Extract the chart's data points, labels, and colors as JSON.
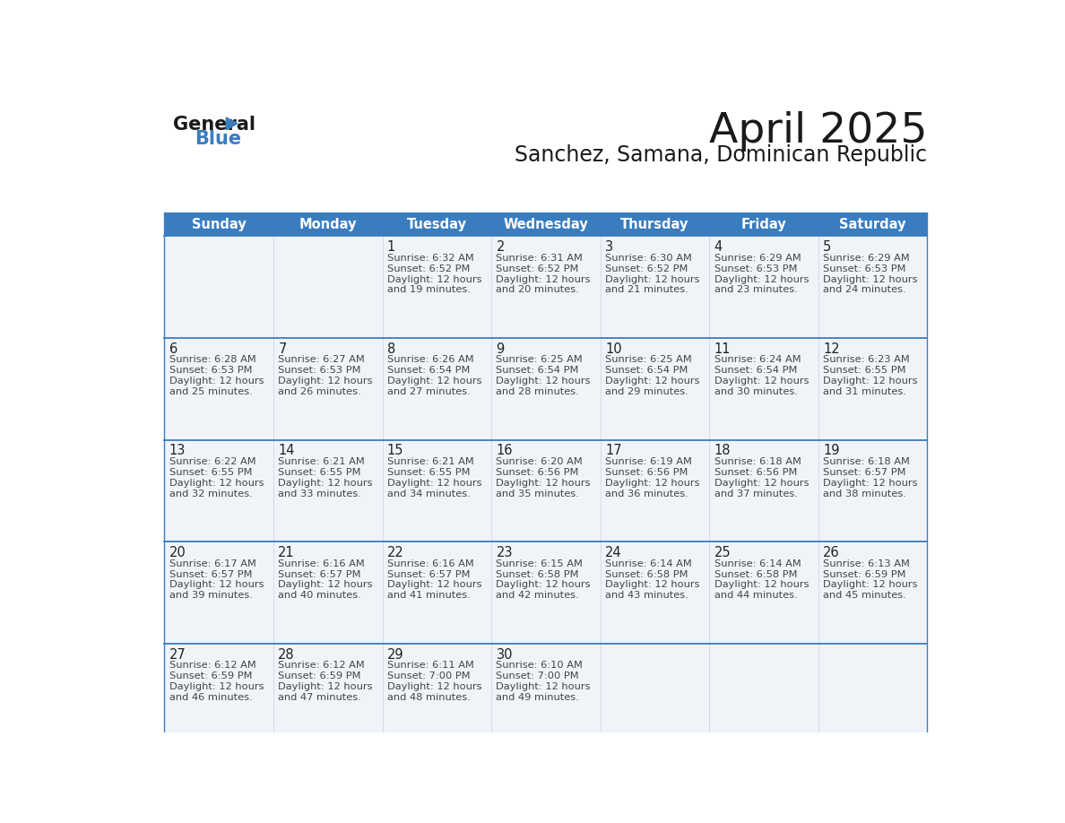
{
  "title": "April 2025",
  "subtitle": "Sanchez, Samana, Dominican Republic",
  "header_bg": "#3a7dbf",
  "header_text": "#ffffff",
  "cell_bg": "#f0f4f9",
  "border_color": "#3a7dbf",
  "text_color": "#444444",
  "days_of_week": [
    "Sunday",
    "Monday",
    "Tuesday",
    "Wednesday",
    "Thursday",
    "Friday",
    "Saturday"
  ],
  "weeks": [
    [
      {
        "day": null,
        "sunrise": null,
        "sunset": null,
        "daylight_min": null
      },
      {
        "day": null,
        "sunrise": null,
        "sunset": null,
        "daylight_min": null
      },
      {
        "day": 1,
        "sunrise": "6:32 AM",
        "sunset": "6:52 PM",
        "daylight_min": 19
      },
      {
        "day": 2,
        "sunrise": "6:31 AM",
        "sunset": "6:52 PM",
        "daylight_min": 20
      },
      {
        "day": 3,
        "sunrise": "6:30 AM",
        "sunset": "6:52 PM",
        "daylight_min": 21
      },
      {
        "day": 4,
        "sunrise": "6:29 AM",
        "sunset": "6:53 PM",
        "daylight_min": 23
      },
      {
        "day": 5,
        "sunrise": "6:29 AM",
        "sunset": "6:53 PM",
        "daylight_min": 24
      }
    ],
    [
      {
        "day": 6,
        "sunrise": "6:28 AM",
        "sunset": "6:53 PM",
        "daylight_min": 25
      },
      {
        "day": 7,
        "sunrise": "6:27 AM",
        "sunset": "6:53 PM",
        "daylight_min": 26
      },
      {
        "day": 8,
        "sunrise": "6:26 AM",
        "sunset": "6:54 PM",
        "daylight_min": 27
      },
      {
        "day": 9,
        "sunrise": "6:25 AM",
        "sunset": "6:54 PM",
        "daylight_min": 28
      },
      {
        "day": 10,
        "sunrise": "6:25 AM",
        "sunset": "6:54 PM",
        "daylight_min": 29
      },
      {
        "day": 11,
        "sunrise": "6:24 AM",
        "sunset": "6:54 PM",
        "daylight_min": 30
      },
      {
        "day": 12,
        "sunrise": "6:23 AM",
        "sunset": "6:55 PM",
        "daylight_min": 31
      }
    ],
    [
      {
        "day": 13,
        "sunrise": "6:22 AM",
        "sunset": "6:55 PM",
        "daylight_min": 32
      },
      {
        "day": 14,
        "sunrise": "6:21 AM",
        "sunset": "6:55 PM",
        "daylight_min": 33
      },
      {
        "day": 15,
        "sunrise": "6:21 AM",
        "sunset": "6:55 PM",
        "daylight_min": 34
      },
      {
        "day": 16,
        "sunrise": "6:20 AM",
        "sunset": "6:56 PM",
        "daylight_min": 35
      },
      {
        "day": 17,
        "sunrise": "6:19 AM",
        "sunset": "6:56 PM",
        "daylight_min": 36
      },
      {
        "day": 18,
        "sunrise": "6:18 AM",
        "sunset": "6:56 PM",
        "daylight_min": 37
      },
      {
        "day": 19,
        "sunrise": "6:18 AM",
        "sunset": "6:57 PM",
        "daylight_min": 38
      }
    ],
    [
      {
        "day": 20,
        "sunrise": "6:17 AM",
        "sunset": "6:57 PM",
        "daylight_min": 39
      },
      {
        "day": 21,
        "sunrise": "6:16 AM",
        "sunset": "6:57 PM",
        "daylight_min": 40
      },
      {
        "day": 22,
        "sunrise": "6:16 AM",
        "sunset": "6:57 PM",
        "daylight_min": 41
      },
      {
        "day": 23,
        "sunrise": "6:15 AM",
        "sunset": "6:58 PM",
        "daylight_min": 42
      },
      {
        "day": 24,
        "sunrise": "6:14 AM",
        "sunset": "6:58 PM",
        "daylight_min": 43
      },
      {
        "day": 25,
        "sunrise": "6:14 AM",
        "sunset": "6:58 PM",
        "daylight_min": 44
      },
      {
        "day": 26,
        "sunrise": "6:13 AM",
        "sunset": "6:59 PM",
        "daylight_min": 45
      }
    ],
    [
      {
        "day": 27,
        "sunrise": "6:12 AM",
        "sunset": "6:59 PM",
        "daylight_min": 46
      },
      {
        "day": 28,
        "sunrise": "6:12 AM",
        "sunset": "6:59 PM",
        "daylight_min": 47
      },
      {
        "day": 29,
        "sunrise": "6:11 AM",
        "sunset": "7:00 PM",
        "daylight_min": 48
      },
      {
        "day": 30,
        "sunrise": "6:10 AM",
        "sunset": "7:00 PM",
        "daylight_min": 49
      },
      {
        "day": null,
        "sunrise": null,
        "sunset": null,
        "daylight_min": null
      },
      {
        "day": null,
        "sunrise": null,
        "sunset": null,
        "daylight_min": null
      },
      {
        "day": null,
        "sunrise": null,
        "sunset": null,
        "daylight_min": null
      }
    ]
  ],
  "fig_width": 11.88,
  "fig_height": 9.18,
  "dpi": 100
}
